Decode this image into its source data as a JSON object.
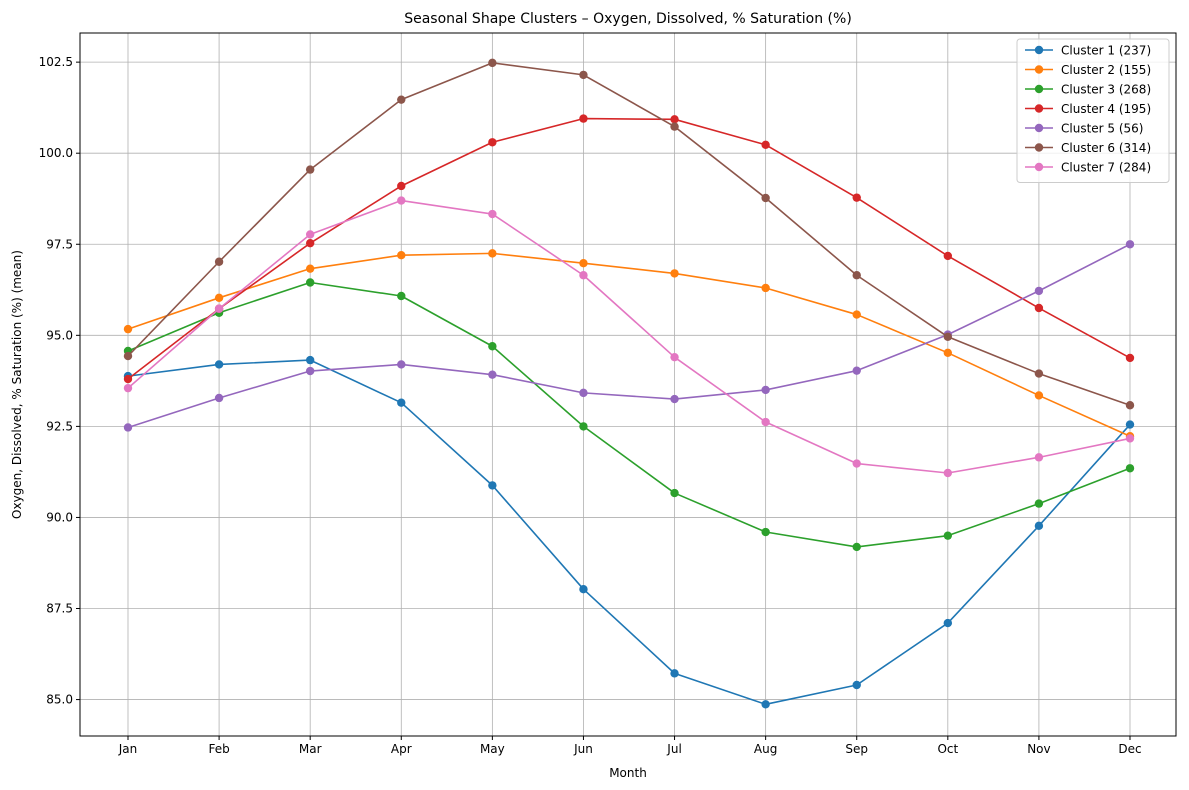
{
  "chart_data": {
    "type": "line",
    "title": "Seasonal Shape Clusters – Oxygen, Dissolved, % Saturation (%)",
    "xlabel": "Month",
    "ylabel": "Oxygen, Dissolved, % Saturation (%) (mean)",
    "categories": [
      "Jan",
      "Feb",
      "Mar",
      "Apr",
      "May",
      "Jun",
      "Jul",
      "Aug",
      "Sep",
      "Oct",
      "Nov",
      "Dec"
    ],
    "ylim": [
      84.0,
      103.3
    ],
    "yticks": [
      "85.0",
      "87.5",
      "90.0",
      "92.5",
      "95.0",
      "97.5",
      "100.0",
      "102.5"
    ],
    "grid": true,
    "legend_position": "top-right",
    "series": [
      {
        "name": "Cluster 1 (237)",
        "color": "#1f77b4",
        "values": [
          93.88,
          94.2,
          94.32,
          93.15,
          90.88,
          88.03,
          85.72,
          84.87,
          85.4,
          87.1,
          89.77,
          92.55
        ]
      },
      {
        "name": "Cluster 2 (155)",
        "color": "#ff7f0e",
        "values": [
          95.17,
          96.03,
          96.83,
          97.2,
          97.25,
          96.98,
          96.7,
          96.3,
          95.57,
          94.52,
          93.35,
          92.23
        ]
      },
      {
        "name": "Cluster 3 (268)",
        "color": "#2ca02c",
        "values": [
          94.57,
          95.62,
          96.45,
          96.08,
          94.7,
          92.5,
          90.67,
          89.6,
          89.19,
          89.5,
          90.38,
          91.35
        ]
      },
      {
        "name": "Cluster 4 (195)",
        "color": "#d62728",
        "values": [
          93.8,
          95.73,
          97.53,
          99.1,
          100.3,
          100.95,
          100.93,
          100.23,
          98.78,
          97.18,
          95.75,
          94.38
        ]
      },
      {
        "name": "Cluster 5 (56)",
        "color": "#9467bd",
        "values": [
          92.47,
          93.28,
          94.02,
          94.2,
          93.92,
          93.42,
          93.25,
          93.5,
          94.03,
          95.02,
          96.22,
          97.5
        ]
      },
      {
        "name": "Cluster 6 (314)",
        "color": "#8c564b",
        "values": [
          94.43,
          97.02,
          99.55,
          101.47,
          102.48,
          102.15,
          100.73,
          98.77,
          96.65,
          94.96,
          93.95,
          93.08
        ]
      },
      {
        "name": "Cluster 7 (284)",
        "color": "#e377c2",
        "values": [
          93.55,
          95.73,
          97.77,
          98.7,
          98.33,
          96.65,
          94.4,
          92.62,
          91.48,
          91.22,
          91.65,
          92.17
        ]
      }
    ]
  }
}
